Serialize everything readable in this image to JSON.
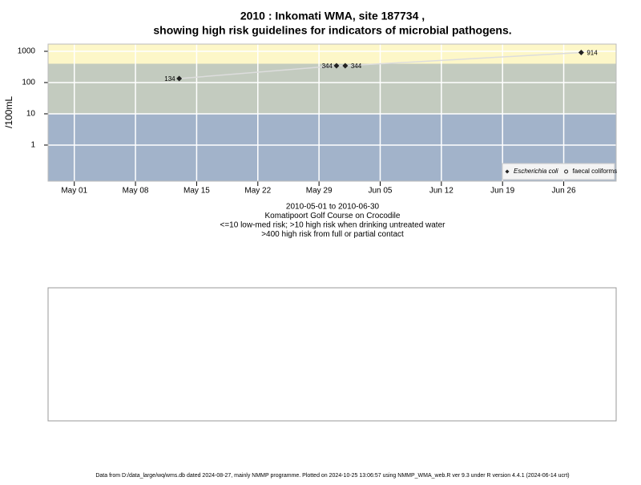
{
  "chart_data": {
    "type": "scatter",
    "title": "2010 : Inkomati WMA, site 187734 ,",
    "subtitle": "showing high risk guidelines for indicators of microbial pathogens.",
    "y_label": "/100mL",
    "notes": [
      "2010-05-01 to 2010-06-30",
      "Komatipoort Golf Course on Crocodile",
      "<=10 low-med risk; >10 high risk when drinking untreated water",
      ">400 high risk from full or partial contact"
    ],
    "x": [
      "2010-05-13",
      "2010-05-31",
      "2010-06-01",
      "2010-06-28"
    ],
    "series": [
      {
        "name": "Escherichia coli",
        "color": "#222222",
        "values": [
          134,
          344,
          344,
          914
        ]
      },
      {
        "name": "faecal coliforms",
        "color": "#222222",
        "values": [
          null,
          null,
          null,
          null
        ]
      }
    ],
    "line_color": "#dddddd",
    "log_y": true,
    "ylim": [
      0.07,
      1700
    ],
    "yticks": [
      1,
      10,
      100,
      1000
    ],
    "xlim": [
      "2010-04-28",
      "2010-07-02"
    ],
    "xticks": [
      {
        "value": "2010-05-01",
        "label": "May 01"
      },
      {
        "value": "2010-05-08",
        "label": "May 08"
      },
      {
        "value": "2010-05-15",
        "label": "May 15"
      },
      {
        "value": "2010-05-22",
        "label": "May 22"
      },
      {
        "value": "2010-05-29",
        "label": "May 29"
      },
      {
        "value": "2010-06-05",
        "label": "Jun 05"
      },
      {
        "value": "2010-06-12",
        "label": "Jun 12"
      },
      {
        "value": "2010-06-19",
        "label": "Jun 19"
      },
      {
        "value": "2010-06-26",
        "label": "Jun 26"
      }
    ],
    "thresholds": [
      10,
      400
    ],
    "band_colors": [
      "#a2b3ca",
      "#c3cbbf",
      "#fdf7c8"
    ],
    "grid": true,
    "legend": "bottom-right"
  },
  "footer": "Data from D:/data_large/wq/wms.db dated 2024-08-27, mainly NMMP programme. Plotted on 2024-10-25 13:06:57 using NMMP_WMA_web.R ver 9.3 under R version 4.4.1 (2024-06-14 ucrt)"
}
